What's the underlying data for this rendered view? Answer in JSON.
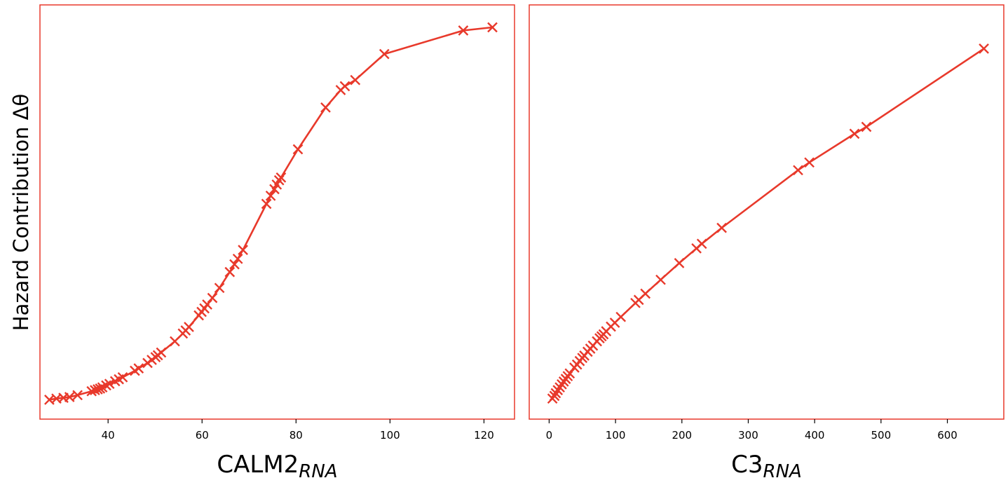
{
  "figure": {
    "ylabel": "Hazard Contribution Δθ",
    "series_color": "#e8392b",
    "frame_color": "#e8392b"
  },
  "chart_data": [
    {
      "type": "line",
      "marker": "x",
      "xlabel_main": "CALM2",
      "xlabel_sub": "RNA",
      "ylabel": "Hazard Contribution Δθ",
      "xlim": [
        25.5,
        126.5
      ],
      "ylim": [
        -0.05,
        1.02
      ],
      "xticks": [
        40,
        60,
        80,
        100,
        120
      ],
      "grid": false,
      "x": [
        27.5,
        29,
        30.5,
        31.8,
        33.5,
        36.5,
        37.2,
        37.8,
        38.3,
        38.8,
        39.6,
        40.3,
        41.5,
        42.3,
        43.1,
        45.7,
        46.5,
        48.4,
        49.3,
        50.1,
        50.6,
        51.3,
        54.2,
        55.9,
        56.5,
        57.2,
        59.3,
        59.9,
        60.5,
        61.1,
        62.2,
        63.7,
        65.9,
        66.9,
        67.6,
        68.7,
        73.7,
        74.6,
        75.4,
        75.9,
        76.4,
        76.8,
        80.4,
        86.3,
        89.5,
        90.4,
        92.6,
        98.8,
        115.6,
        121.8
      ],
      "y": [
        0.0,
        0.003,
        0.005,
        0.007,
        0.012,
        0.022,
        0.025,
        0.027,
        0.029,
        0.032,
        0.037,
        0.041,
        0.048,
        0.053,
        0.058,
        0.075,
        0.081,
        0.095,
        0.103,
        0.11,
        0.115,
        0.122,
        0.151,
        0.171,
        0.179,
        0.188,
        0.218,
        0.227,
        0.236,
        0.246,
        0.263,
        0.289,
        0.33,
        0.35,
        0.364,
        0.387,
        0.506,
        0.527,
        0.544,
        0.556,
        0.567,
        0.574,
        0.647,
        0.755,
        0.8,
        0.81,
        0.826,
        0.893,
        0.954,
        0.962
      ]
    },
    {
      "type": "line",
      "marker": "x",
      "xlabel_main": "C3",
      "xlabel_sub": "RNA",
      "ylabel": "",
      "xlim": [
        -30,
        685
      ],
      "ylim": [
        -0.05,
        1.02
      ],
      "xticks": [
        0,
        100,
        200,
        300,
        400,
        500,
        600
      ],
      "grid": false,
      "x": [
        5,
        8,
        10,
        13,
        16,
        19,
        22,
        25,
        28,
        31,
        38,
        42,
        46,
        50,
        53,
        58,
        62,
        66,
        72,
        76,
        79,
        82,
        86,
        93,
        99,
        108,
        130,
        135,
        145,
        168,
        196,
        222,
        230,
        260,
        375,
        392,
        460,
        478,
        655
      ],
      "y": [
        0.003,
        0.01,
        0.017,
        0.025,
        0.032,
        0.04,
        0.047,
        0.054,
        0.061,
        0.068,
        0.083,
        0.091,
        0.1,
        0.108,
        0.114,
        0.124,
        0.132,
        0.14,
        0.151,
        0.159,
        0.164,
        0.169,
        0.177,
        0.189,
        0.199,
        0.214,
        0.25,
        0.258,
        0.274,
        0.31,
        0.353,
        0.391,
        0.403,
        0.444,
        0.593,
        0.613,
        0.687,
        0.705,
        0.907
      ]
    }
  ]
}
